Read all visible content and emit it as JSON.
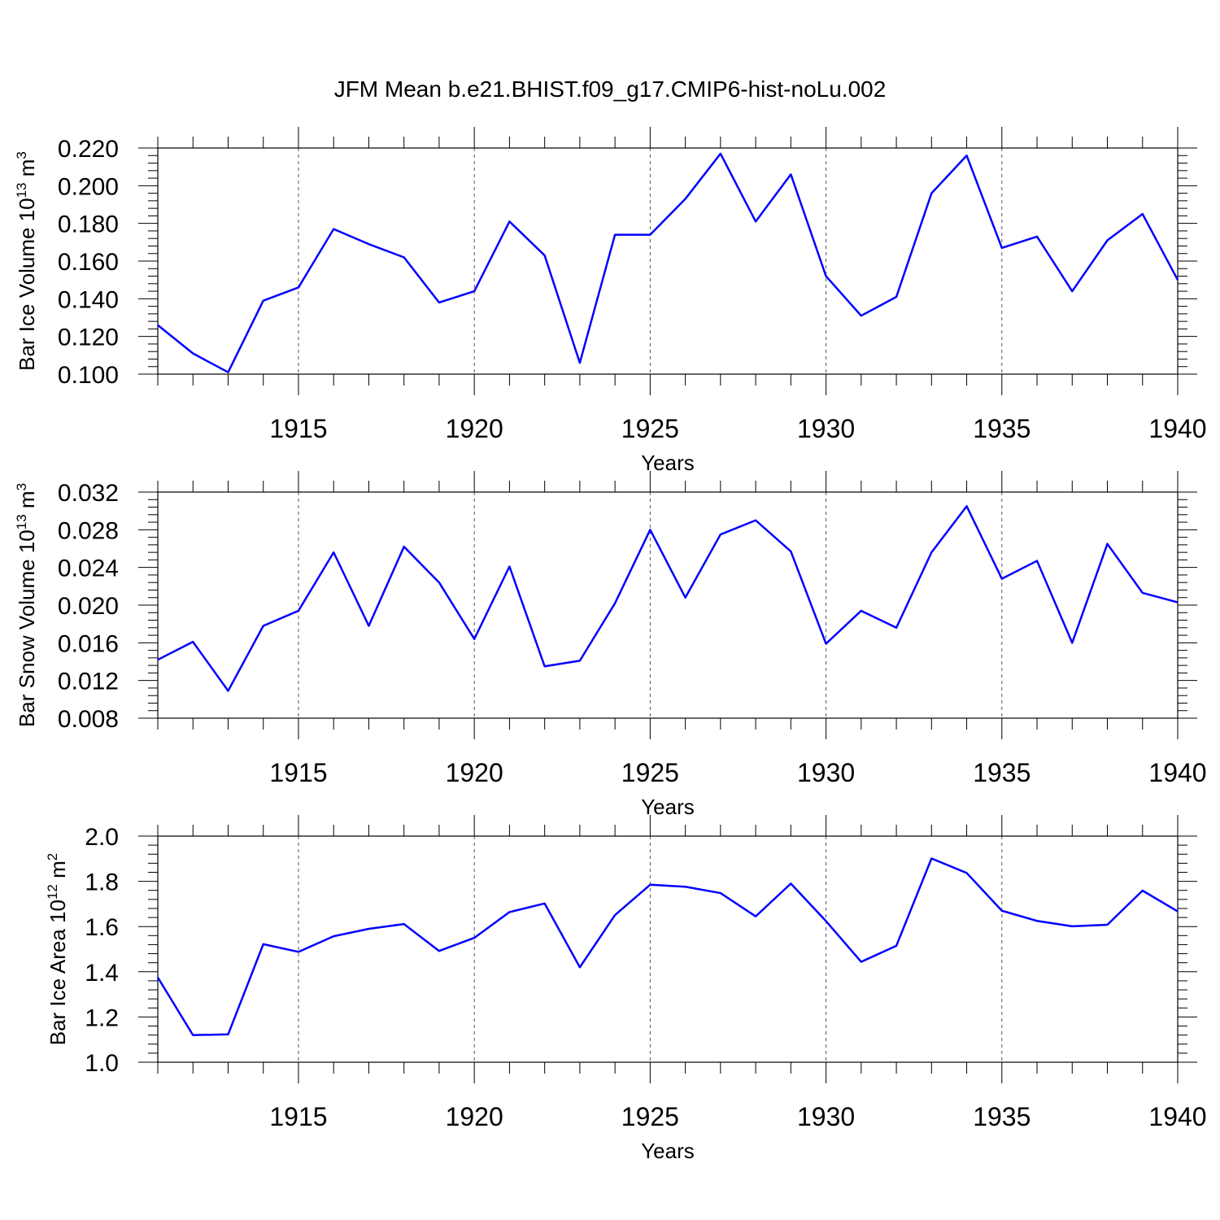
{
  "title": "JFM Mean b.e21.BHIST.f09_g17.CMIP6-hist-noLu.002",
  "chart_data": [
    {
      "type": "line",
      "ylabel_text": "Bar Ice Volume 10",
      "ylabel_exp": "13",
      "ylabel_unit": " m",
      "ylabel_unit_exp": "3",
      "xlabel": "Years",
      "xlim": [
        1911,
        1940
      ],
      "ylim": [
        0.1,
        0.22
      ],
      "y_ticks": [
        "0.100",
        "0.120",
        "0.140",
        "0.160",
        "0.180",
        "0.200",
        "0.220"
      ],
      "x_ticks": [
        "1915",
        "1920",
        "1925",
        "1930",
        "1935",
        "1940"
      ],
      "grid": "vertical-dashed",
      "color": "#0000ff",
      "x": [
        1911,
        1912,
        1913,
        1914,
        1915,
        1916,
        1917,
        1918,
        1919,
        1920,
        1921,
        1922,
        1923,
        1924,
        1925,
        1926,
        1927,
        1928,
        1929,
        1930,
        1931,
        1932,
        1933,
        1934,
        1935,
        1936,
        1937,
        1938,
        1939,
        1940
      ],
      "values": [
        0.126,
        0.111,
        0.101,
        0.139,
        0.146,
        0.177,
        0.169,
        0.162,
        0.138,
        0.144,
        0.181,
        0.163,
        0.106,
        0.174,
        0.174,
        0.193,
        0.217,
        0.181,
        0.206,
        0.152,
        0.131,
        0.141,
        0.196,
        0.216,
        0.167,
        0.173,
        0.144,
        0.171,
        0.185,
        0.15
      ]
    },
    {
      "type": "line",
      "ylabel_text": "Bar Snow Volume 10",
      "ylabel_exp": "13",
      "ylabel_unit": " m",
      "ylabel_unit_exp": "3",
      "xlabel": "Years",
      "xlim": [
        1911,
        1940
      ],
      "ylim": [
        0.008,
        0.032
      ],
      "y_ticks": [
        "0.008",
        "0.012",
        "0.016",
        "0.020",
        "0.024",
        "0.028",
        "0.032"
      ],
      "x_ticks": [
        "1915",
        "1920",
        "1925",
        "1930",
        "1935",
        "1940"
      ],
      "grid": "vertical-dashed",
      "color": "#0000ff",
      "x": [
        1911,
        1912,
        1913,
        1914,
        1915,
        1916,
        1917,
        1918,
        1919,
        1920,
        1921,
        1922,
        1923,
        1924,
        1925,
        1926,
        1927,
        1928,
        1929,
        1930,
        1931,
        1932,
        1933,
        1934,
        1935,
        1936,
        1937,
        1938,
        1939,
        1940
      ],
      "values": [
        0.0142,
        0.0161,
        0.0109,
        0.0178,
        0.0194,
        0.0256,
        0.0178,
        0.0262,
        0.0224,
        0.0164,
        0.0241,
        0.0135,
        0.0141,
        0.0202,
        0.028,
        0.0208,
        0.0275,
        0.029,
        0.0257,
        0.0159,
        0.0194,
        0.0176,
        0.0256,
        0.0305,
        0.0228,
        0.0247,
        0.016,
        0.0265,
        0.0213,
        0.0203
      ]
    },
    {
      "type": "line",
      "ylabel_text": "Bar Ice Area 10",
      "ylabel_exp": "12",
      "ylabel_unit": " m",
      "ylabel_unit_exp": "2",
      "xlabel": "Years",
      "xlim": [
        1911,
        1940
      ],
      "ylim": [
        1.0,
        2.0
      ],
      "y_ticks": [
        "1.0",
        "1.2",
        "1.4",
        "1.6",
        "1.8",
        "2.0"
      ],
      "x_ticks": [
        "1915",
        "1920",
        "1925",
        "1930",
        "1935",
        "1940"
      ],
      "grid": "vertical-dashed",
      "color": "#0000ff",
      "x": [
        1911,
        1912,
        1913,
        1914,
        1915,
        1916,
        1917,
        1918,
        1919,
        1920,
        1921,
        1922,
        1923,
        1924,
        1925,
        1926,
        1927,
        1928,
        1929,
        1930,
        1931,
        1932,
        1933,
        1934,
        1935,
        1936,
        1937,
        1938,
        1939,
        1940
      ],
      "values": [
        1.375,
        1.12,
        1.123,
        1.522,
        1.488,
        1.557,
        1.59,
        1.611,
        1.492,
        1.55,
        1.664,
        1.702,
        1.42,
        1.651,
        1.785,
        1.776,
        1.748,
        1.645,
        1.79,
        1.624,
        1.444,
        1.515,
        1.901,
        1.837,
        1.67,
        1.625,
        1.601,
        1.608,
        1.759,
        1.667
      ]
    }
  ]
}
